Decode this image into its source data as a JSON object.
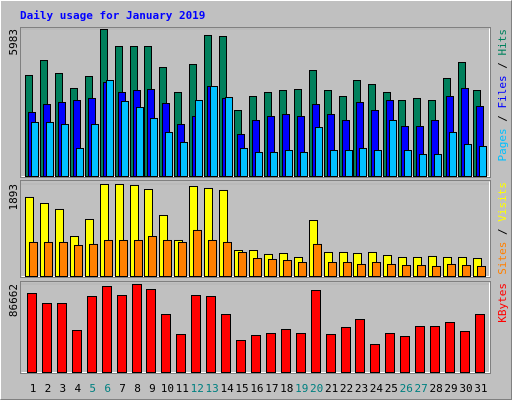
{
  "chart_data": {
    "type": "bar",
    "title": "Daily usage for January 2019",
    "categories": [
      1,
      2,
      3,
      4,
      5,
      6,
      7,
      8,
      9,
      10,
      11,
      12,
      13,
      14,
      15,
      16,
      17,
      18,
      19,
      20,
      21,
      22,
      23,
      24,
      25,
      26,
      27,
      28,
      29,
      30,
      31
    ],
    "category_colors": [
      "#000000",
      "#000000",
      "#000000",
      "#000000",
      "#008080",
      "#008080",
      "#000000",
      "#000000",
      "#000000",
      "#000000",
      "#000000",
      "#008080",
      "#008080",
      "#000000",
      "#000000",
      "#000000",
      "#000000",
      "#000000",
      "#008080",
      "#008080",
      "#000000",
      "#000000",
      "#000000",
      "#000000",
      "#000000",
      "#008080",
      "#008080",
      "#000000",
      "#000000",
      "#000000",
      "#000000"
    ],
    "legend_separator": " / ",
    "panels": [
      {
        "ylim": [
          0,
          5983
        ],
        "yticks": [
          5983
        ],
        "series": [
          {
            "name": "Hits",
            "color": "#00805c",
            "values": [
              4111,
              4721,
              4192,
              3582,
              4070,
              5983,
              5291,
              5291,
              5291,
              4436,
              3419,
              4558,
              5739,
              5698,
              2686,
              3256,
              3419,
              3500,
              3541,
              4314,
              3500,
              3256,
              3907,
              3744,
              3419,
              3093,
              3175,
              3093,
              3989,
              4640,
              3500
            ]
          },
          {
            "name": "Files",
            "color": "#0000ff",
            "values": [
              2605,
              2930,
              3012,
              3093,
              3175,
              3826,
              3419,
              3500,
              3541,
              2971,
              2116,
              2442,
              3663,
              3175,
              1709,
              2279,
              2442,
              2523,
              2442,
              2930,
              2523,
              2279,
              3012,
              2686,
              3093,
              2035,
              2035,
              2279,
              3256,
              3582,
              2849
            ]
          },
          {
            "name": "Pages",
            "color": "#00c0ff",
            "values": [
              2198,
              2198,
              2116,
              1140,
              2116,
              3907,
              3053,
              2808,
              2361,
              1791,
              1384,
              3093,
              3663,
              3215,
              1140,
              977,
              977,
              1058,
              977,
              1994,
              1058,
              1058,
              1140,
              1058,
              2279,
              1058,
              895,
              895,
              1791,
              1302,
              1221
            ]
          }
        ]
      },
      {
        "ylim": [
          0,
          1893
        ],
        "yticks": [
          1893
        ],
        "series": [
          {
            "name": "Visits",
            "color": "#ffff00",
            "values": [
              1626,
              1502,
              1379,
              823,
              1173,
              1893,
              1893,
              1873,
              1790,
              1255,
              741,
              1852,
              1811,
              1770,
              535,
              535,
              453,
              473,
              391,
              1152,
              494,
              494,
              473,
              494,
              432,
              391,
              391,
              412,
              391,
              391,
              370
            ]
          },
          {
            "name": "Sites",
            "color": "#ff8000",
            "values": [
              700,
              700,
              700,
              638,
              659,
              741,
              741,
              741,
              823,
              741,
              700,
              947,
              741,
              700,
              494,
              370,
              350,
              329,
              288,
              659,
              288,
              288,
              247,
              288,
              247,
              226,
              226,
              206,
              247,
              226,
              206
            ]
          }
        ]
      },
      {
        "ylim": [
          0,
          86662
        ],
        "yticks": [
          86662
        ],
        "series": [
          {
            "name": "KBytes",
            "color": "#ff0000",
            "values": [
              77800,
              67950,
              67950,
              41360,
              74840,
              84690,
              75830,
              86662,
              81740,
              57120,
              37420,
              75830,
              74840,
              57120,
              31510,
              36440,
              38410,
              42350,
              38410,
              80750,
              37420,
              44320,
              52190,
              27570,
              38410,
              35450,
              45300,
              45300,
              49240,
              40380,
              57120
            ]
          }
        ]
      }
    ]
  }
}
